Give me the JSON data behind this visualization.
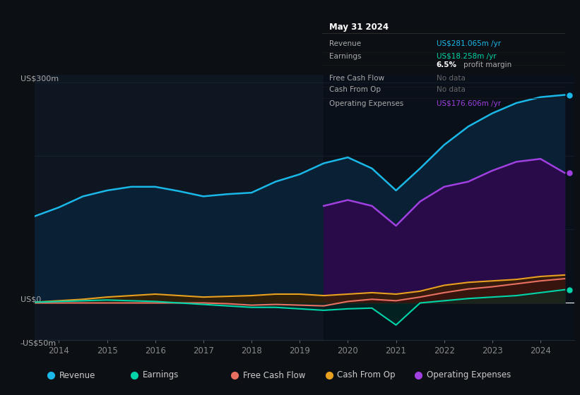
{
  "background_color": "#0c1014",
  "plot_bg_color": "#0e1621",
  "ylim": [
    -50,
    310
  ],
  "xlim": [
    2013.5,
    2024.7
  ],
  "xticks": [
    2014,
    2015,
    2016,
    2017,
    2018,
    2019,
    2020,
    2021,
    2022,
    2023,
    2024
  ],
  "revenue_color": "#1ab8e8",
  "earnings_color": "#00d4a8",
  "fcf_color": "#e87060",
  "cashfromop_color": "#e8a020",
  "opex_color": "#a040e0",
  "legend_items": [
    {
      "label": "Revenue",
      "color": "#1ab8e8"
    },
    {
      "label": "Earnings",
      "color": "#00d4a8"
    },
    {
      "label": "Free Cash Flow",
      "color": "#e87060"
    },
    {
      "label": "Cash From Op",
      "color": "#e8a020"
    },
    {
      "label": "Operating Expenses",
      "color": "#a040e0"
    }
  ],
  "info_box": {
    "title": "May 31 2024",
    "rows": [
      {
        "label": "Revenue",
        "value": "US$281.065m /yr",
        "value_color": "#1ab8e8"
      },
      {
        "label": "Earnings",
        "value": "US$18.258m /yr",
        "value_color": "#00d4a8"
      },
      {
        "label": "",
        "value": "6.5% profit margin",
        "value_color": "#aaaaaa"
      },
      {
        "label": "Free Cash Flow",
        "value": "No data",
        "value_color": "#666666"
      },
      {
        "label": "Cash From Op",
        "value": "No data",
        "value_color": "#666666"
      },
      {
        "label": "Operating Expenses",
        "value": "US$176.606m /yr",
        "value_color": "#a040e0"
      }
    ]
  },
  "revenue": {
    "years": [
      2013.5,
      2014.0,
      2014.5,
      2015.0,
      2015.5,
      2016.0,
      2016.5,
      2017.0,
      2017.5,
      2018.0,
      2018.5,
      2019.0,
      2019.5,
      2020.0,
      2020.5,
      2021.0,
      2021.5,
      2022.0,
      2022.5,
      2023.0,
      2023.5,
      2024.0,
      2024.5
    ],
    "values": [
      118,
      130,
      145,
      153,
      158,
      158,
      152,
      145,
      148,
      150,
      165,
      175,
      190,
      198,
      183,
      153,
      183,
      215,
      240,
      258,
      272,
      280,
      283
    ]
  },
  "earnings": {
    "years": [
      2013.5,
      2014.0,
      2014.5,
      2015.0,
      2015.5,
      2016.0,
      2016.5,
      2017.0,
      2017.5,
      2018.0,
      2018.5,
      2019.0,
      2019.5,
      2020.0,
      2020.5,
      2021.0,
      2021.5,
      2022.0,
      2022.5,
      2023.0,
      2023.5,
      2024.0,
      2024.5
    ],
    "values": [
      1,
      2,
      3,
      4,
      3,
      2,
      0,
      -2,
      -4,
      -6,
      -6,
      -8,
      -10,
      -8,
      -7,
      -30,
      0,
      3,
      6,
      8,
      10,
      14,
      18
    ]
  },
  "fcf": {
    "years": [
      2013.5,
      2014.0,
      2014.5,
      2015.0,
      2015.5,
      2016.0,
      2016.5,
      2017.0,
      2017.5,
      2018.0,
      2018.5,
      2019.0,
      2019.5,
      2020.0,
      2020.5,
      2021.0,
      2021.5,
      2022.0,
      2022.5,
      2023.0,
      2023.5,
      2024.0,
      2024.5
    ],
    "values": [
      0,
      0,
      0,
      0,
      0,
      0,
      0,
      0,
      -1,
      -3,
      -2,
      -3,
      -4,
      2,
      5,
      3,
      8,
      14,
      19,
      22,
      26,
      30,
      33
    ]
  },
  "cashfromop": {
    "years": [
      2013.5,
      2014.0,
      2014.5,
      2015.0,
      2015.5,
      2016.0,
      2016.5,
      2017.0,
      2017.5,
      2018.0,
      2018.5,
      2019.0,
      2019.5,
      2020.0,
      2020.5,
      2021.0,
      2021.5,
      2022.0,
      2022.5,
      2023.0,
      2023.5,
      2024.0,
      2024.5
    ],
    "values": [
      1,
      3,
      5,
      8,
      10,
      12,
      10,
      8,
      9,
      10,
      12,
      12,
      10,
      12,
      14,
      12,
      16,
      24,
      28,
      30,
      32,
      36,
      38
    ]
  },
  "opex": {
    "years": [
      2019.5,
      2020.0,
      2020.5,
      2021.0,
      2021.5,
      2022.0,
      2022.5,
      2023.0,
      2023.5,
      2024.0,
      2024.5
    ],
    "values": [
      132,
      140,
      132,
      105,
      138,
      158,
      165,
      180,
      192,
      196,
      177
    ]
  }
}
